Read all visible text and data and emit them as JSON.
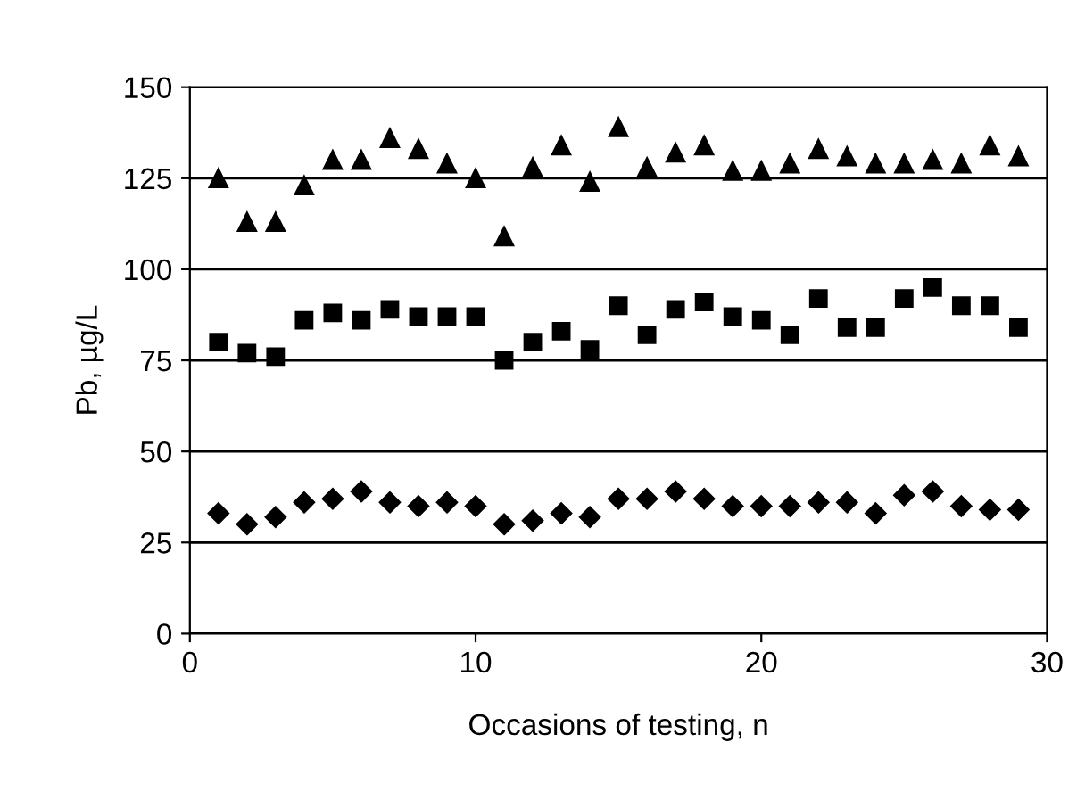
{
  "chart_data": {
    "type": "scatter",
    "xlabel": "Occasions of testing, n",
    "ylabel": "Pb, µg/L",
    "x": [
      1,
      2,
      3,
      4,
      5,
      6,
      7,
      8,
      9,
      10,
      11,
      12,
      13,
      14,
      15,
      16,
      17,
      18,
      19,
      20,
      21,
      22,
      23,
      24,
      25,
      26,
      27,
      28,
      29
    ],
    "series": [
      {
        "color": "#000000",
        "marker": "triangle",
        "values": [
          125,
          113,
          113,
          123,
          130,
          130,
          136,
          133,
          129,
          125,
          109,
          128,
          134,
          124,
          139,
          128,
          132,
          134,
          127,
          127,
          129,
          133,
          131,
          129,
          129,
          130,
          129,
          134,
          131
        ]
      },
      {
        "color": "#000000",
        "marker": "square",
        "values": [
          80,
          77,
          76,
          86,
          88,
          86,
          89,
          87,
          87,
          87,
          75,
          80,
          83,
          78,
          90,
          82,
          89,
          91,
          87,
          86,
          82,
          92,
          84,
          84,
          92,
          95,
          90,
          90,
          84
        ]
      },
      {
        "color": "#000000",
        "marker": "diamond",
        "values": [
          33,
          30,
          32,
          36,
          37,
          39,
          36,
          35,
          36,
          35,
          30,
          31,
          33,
          32,
          37,
          37,
          39,
          37,
          35,
          35,
          35,
          36,
          36,
          33,
          38,
          39,
          35,
          34,
          34
        ]
      }
    ],
    "xlim": [
      0,
      30
    ],
    "xticks": [
      0,
      10,
      20,
      30
    ],
    "ylim": [
      0,
      150
    ],
    "yticks": [
      0,
      25,
      50,
      75,
      100,
      125,
      150
    ],
    "grid": "y",
    "legend": false
  }
}
